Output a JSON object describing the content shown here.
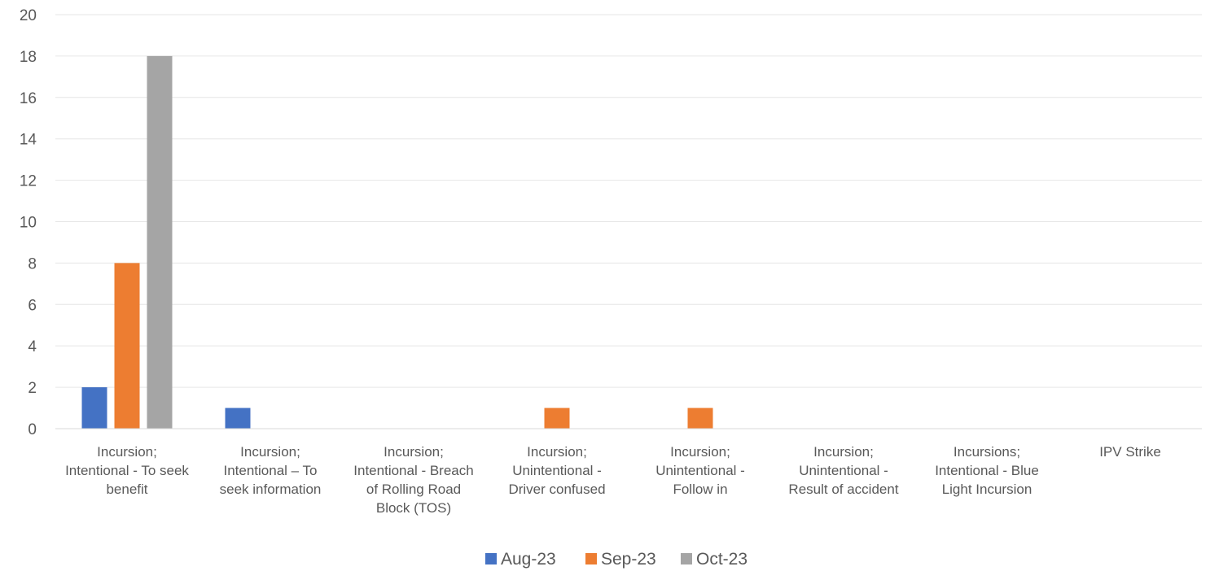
{
  "chart_data": {
    "type": "bar",
    "title": "",
    "xlabel": "",
    "ylabel": "",
    "ylim": [
      0,
      20
    ],
    "y_ticks": [
      0,
      2,
      4,
      6,
      8,
      10,
      12,
      14,
      16,
      18,
      20
    ],
    "grid": true,
    "legend_position": "bottom",
    "categories": [
      [
        "Incursion;",
        "Intentional - To seek",
        "benefit"
      ],
      [
        "Incursion;",
        "Intentional – To",
        "seek information"
      ],
      [
        "Incursion;",
        "Intentional - Breach",
        "of Rolling Road",
        "Block (TOS)"
      ],
      [
        "Incursion;",
        "Unintentional -",
        "Driver confused"
      ],
      [
        "Incursion;",
        "Unintentional -",
        "Follow in"
      ],
      [
        "Incursion;",
        "Unintentional -",
        "Result of accident"
      ],
      [
        "Incursions;",
        "Intentional - Blue",
        "Light Incursion"
      ],
      [
        "IPV Strike"
      ]
    ],
    "series": [
      {
        "name": "Aug-23",
        "color": "#4472C4",
        "values": [
          2,
          1,
          0,
          0,
          0,
          0,
          0,
          0
        ]
      },
      {
        "name": "Sep-23",
        "color": "#ED7D31",
        "values": [
          8,
          0,
          0,
          1,
          1,
          0,
          0,
          0
        ]
      },
      {
        "name": "Oct-23",
        "color": "#A5A5A5",
        "values": [
          18,
          0,
          0,
          0,
          0,
          0,
          0,
          0
        ]
      }
    ]
  }
}
